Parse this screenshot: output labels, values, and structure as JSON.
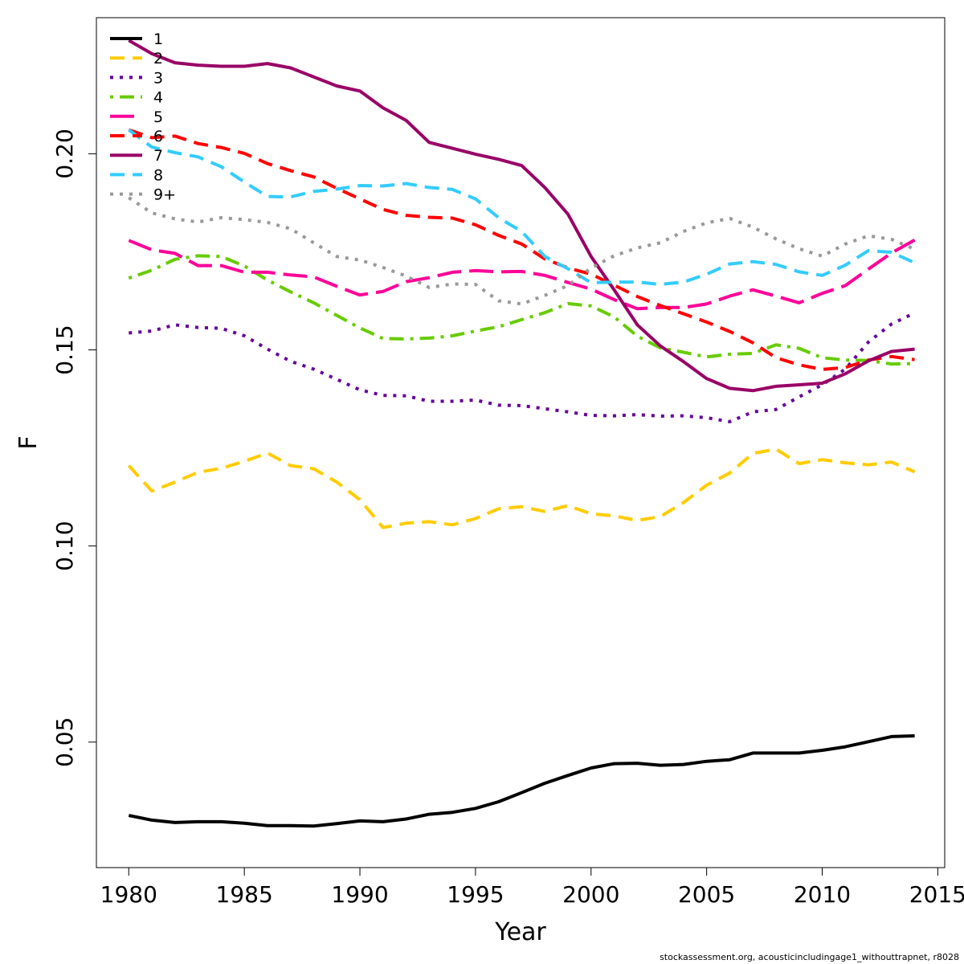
{
  "chart_data": {
    "type": "line",
    "xlabel": "Year",
    "ylabel": "F",
    "xlim": [
      1978.6,
      2015.3
    ],
    "ylim": [
      0.018,
      0.2347
    ],
    "x_ticks": [
      1980,
      1985,
      1990,
      1995,
      2000,
      2005,
      2010,
      2015
    ],
    "y_ticks": [
      0.05,
      0.1,
      0.15,
      0.2
    ],
    "y_tick_labels": [
      "0.05",
      "0.10",
      "0.15",
      "0.20"
    ],
    "legend_position": "top-left",
    "grid": false,
    "x": [
      1980,
      1981,
      1982,
      1983,
      1984,
      1985,
      1986,
      1987,
      1988,
      1989,
      1990,
      1991,
      1992,
      1993,
      1994,
      1995,
      1996,
      1997,
      1998,
      1999,
      2000,
      2001,
      2002,
      2003,
      2004,
      2005,
      2006,
      2007,
      2008,
      2009,
      2010,
      2011,
      2012,
      2013,
      2014
    ],
    "series": [
      {
        "name": "1",
        "color": "#000000",
        "dash": "solid",
        "values": [
          0.0313,
          0.0301,
          0.0295,
          0.0297,
          0.0297,
          0.0293,
          0.0287,
          0.0287,
          0.0286,
          0.0292,
          0.0299,
          0.0297,
          0.0304,
          0.0316,
          0.0321,
          0.0331,
          0.0348,
          0.0371,
          0.0395,
          0.0415,
          0.0434,
          0.0445,
          0.0446,
          0.0441,
          0.0443,
          0.0451,
          0.0455,
          0.0472,
          0.0472,
          0.0472,
          0.0479,
          0.0488,
          0.0501,
          0.0514,
          0.0516
        ]
      },
      {
        "name": "2",
        "color": "#ffcc00",
        "dash": "dashed",
        "values": [
          0.1205,
          0.114,
          0.1163,
          0.1188,
          0.1198,
          0.1216,
          0.1237,
          0.1205,
          0.1197,
          0.1163,
          0.1118,
          0.1047,
          0.1058,
          0.1062,
          0.1054,
          0.107,
          0.1095,
          0.11,
          0.1088,
          0.1103,
          0.1082,
          0.1077,
          0.1065,
          0.1075,
          0.1111,
          0.1155,
          0.1186,
          0.1236,
          0.1247,
          0.121,
          0.122,
          0.1212,
          0.1207,
          0.1214,
          0.1189
        ]
      },
      {
        "name": "3",
        "color": "#660099",
        "dash": "dotted",
        "values": [
          0.1543,
          0.1548,
          0.1564,
          0.1557,
          0.1555,
          0.1536,
          0.1502,
          0.1471,
          0.1451,
          0.1425,
          0.1398,
          0.1384,
          0.1383,
          0.1369,
          0.1369,
          0.1372,
          0.1359,
          0.1358,
          0.135,
          0.1342,
          0.1333,
          0.1332,
          0.1335,
          0.1331,
          0.1332,
          0.1327,
          0.1317,
          0.1342,
          0.1348,
          0.138,
          0.1411,
          0.1451,
          0.152,
          0.1566,
          0.1594
        ]
      },
      {
        "name": "4",
        "color": "#66cc00",
        "dash": "dotdash",
        "values": [
          0.1683,
          0.1703,
          0.1731,
          0.174,
          0.1738,
          0.1714,
          0.1678,
          0.1648,
          0.162,
          0.1588,
          0.1556,
          0.1529,
          0.1528,
          0.153,
          0.1536,
          0.1548,
          0.1559,
          0.1577,
          0.1595,
          0.1618,
          0.1612,
          0.1584,
          0.1535,
          0.1505,
          0.1494,
          0.1482,
          0.1489,
          0.1491,
          0.1513,
          0.1504,
          0.148,
          0.1474,
          0.1473,
          0.1464,
          0.1465
        ]
      },
      {
        "name": "5",
        "color": "#ff0099",
        "dash": "longdash",
        "values": [
          0.1779,
          0.1755,
          0.1746,
          0.1715,
          0.1715,
          0.1698,
          0.1698,
          0.1691,
          0.1686,
          0.1662,
          0.164,
          0.1649,
          0.1674,
          0.1684,
          0.1698,
          0.1702,
          0.1699,
          0.17,
          0.169,
          0.1672,
          0.1655,
          0.1628,
          0.1605,
          0.1608,
          0.1608,
          0.1617,
          0.1637,
          0.1653,
          0.1637,
          0.162,
          0.1644,
          0.1664,
          0.1706,
          0.1747,
          0.178
        ]
      },
      {
        "name": "6",
        "color": "#ff0000",
        "dash": "dashed",
        "values": [
          0.2061,
          0.2041,
          0.2045,
          0.2026,
          0.2016,
          0.2001,
          0.1975,
          0.1957,
          0.1941,
          0.1912,
          0.1885,
          0.1858,
          0.1843,
          0.1838,
          0.1836,
          0.1819,
          0.1792,
          0.177,
          0.1732,
          0.1709,
          0.1693,
          0.1665,
          0.1636,
          0.1613,
          0.1592,
          0.1571,
          0.1547,
          0.1518,
          0.148,
          0.1462,
          0.145,
          0.1455,
          0.1474,
          0.1483,
          0.1475
        ]
      },
      {
        "name": "7",
        "color": "#990066",
        "dash": "solid",
        "values": [
          0.2289,
          0.2255,
          0.2232,
          0.2226,
          0.2223,
          0.2223,
          0.223,
          0.2219,
          0.2196,
          0.2173,
          0.216,
          0.2117,
          0.2085,
          0.2029,
          0.2014,
          0.1999,
          0.1986,
          0.197,
          0.1914,
          0.1846,
          0.1738,
          0.1653,
          0.1564,
          0.151,
          0.147,
          0.1427,
          0.1402,
          0.1396,
          0.1407,
          0.1411,
          0.1415,
          0.1439,
          0.1472,
          0.1496,
          0.1502
        ]
      },
      {
        "name": "8",
        "color": "#33ccff",
        "dash": "dashed",
        "values": [
          0.2061,
          0.2017,
          0.2003,
          0.1992,
          0.1967,
          0.1928,
          0.1891,
          0.189,
          0.1904,
          0.191,
          0.1919,
          0.1918,
          0.1924,
          0.1914,
          0.1909,
          0.1885,
          0.1837,
          0.1802,
          0.1738,
          0.1707,
          0.1671,
          0.1673,
          0.1673,
          0.1667,
          0.1673,
          0.1693,
          0.1719,
          0.1725,
          0.1718,
          0.1699,
          0.169,
          0.1716,
          0.1753,
          0.1749,
          0.1722
        ]
      },
      {
        "name": "9+",
        "color": "#999999",
        "dash": "dotted",
        "values": [
          0.1888,
          0.1849,
          0.1834,
          0.1826,
          0.1837,
          0.1832,
          0.1825,
          0.1809,
          0.1773,
          0.1738,
          0.1729,
          0.171,
          0.1688,
          0.1659,
          0.1668,
          0.1667,
          0.1625,
          0.1617,
          0.1639,
          0.1664,
          0.1709,
          0.174,
          0.176,
          0.1773,
          0.1802,
          0.1824,
          0.1835,
          0.1813,
          0.1783,
          0.1758,
          0.1739,
          0.177,
          0.1791,
          0.1782,
          0.1757
        ]
      }
    ]
  },
  "footer": "stockassessment.org, acousticincludingage1_withouttrapnet, r8028"
}
